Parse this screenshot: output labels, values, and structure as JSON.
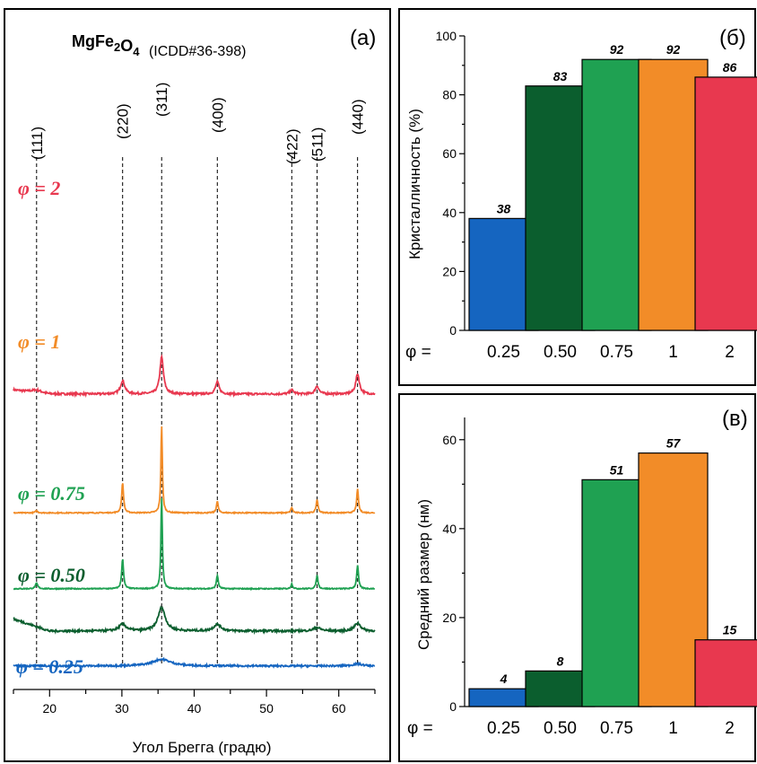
{
  "chart_data": [
    {
      "type": "line",
      "panel_label": "(а)",
      "title_formula": {
        "elements": [
          [
            "Mg",
            ""
          ],
          [
            "Fe",
            "2"
          ],
          [
            "O",
            "4"
          ]
        ]
      },
      "title_ref": "(ICDD#36-398)",
      "xlabel": "Угол Брегга (градю)",
      "xlim": [
        15,
        65
      ],
      "xticks": [
        20,
        30,
        40,
        50,
        60
      ],
      "peaks": [
        {
          "label": "(111)",
          "x": 18.2
        },
        {
          "label": "(220)",
          "x": 30.1
        },
        {
          "label": "(311)",
          "x": 35.5
        },
        {
          "label": "(400)",
          "x": 43.2
        },
        {
          "label": "(422)",
          "x": 53.5
        },
        {
          "label": "(511)",
          "x": 57.0
        },
        {
          "label": "(440)",
          "x": 62.6
        }
      ],
      "series": [
        {
          "name": "φ = 2",
          "color": "#e8384f",
          "baseline": 0.44,
          "rise": 0.006,
          "noise": 0.003,
          "peaks": [
            [
              18.2,
              0.004,
              0.8
            ],
            [
              30.1,
              0.02,
              0.35
            ],
            [
              35.5,
              0.055,
              0.3
            ],
            [
              43.2,
              0.018,
              0.3
            ],
            [
              53.5,
              0.006,
              0.3
            ],
            [
              57.0,
              0.012,
              0.3
            ],
            [
              62.6,
              0.03,
              0.3
            ]
          ]
        },
        {
          "name": "φ = 1",
          "color": "#f28c28",
          "baseline": 0.263,
          "rise": 0.0,
          "noise": 0.0015,
          "peaks": [
            [
              18.2,
              0.003,
              0.2
            ],
            [
              30.1,
              0.045,
              0.15
            ],
            [
              35.5,
              0.13,
              0.12
            ],
            [
              43.2,
              0.017,
              0.15
            ],
            [
              53.5,
              0.008,
              0.15
            ],
            [
              57.0,
              0.02,
              0.15
            ],
            [
              62.6,
              0.035,
              0.15
            ]
          ]
        },
        {
          "name": "φ = 0.75",
          "color": "#1fa152",
          "baseline": 0.15,
          "rise": 0.0,
          "noise": 0.0015,
          "peaks": [
            [
              18.2,
              0.008,
              0.2
            ],
            [
              30.1,
              0.045,
              0.15
            ],
            [
              35.5,
              0.135,
              0.12
            ],
            [
              43.2,
              0.02,
              0.15
            ],
            [
              53.5,
              0.007,
              0.15
            ],
            [
              57.0,
              0.02,
              0.15
            ],
            [
              62.6,
              0.035,
              0.15
            ]
          ]
        },
        {
          "name": "φ = 0.50",
          "color": "#0b5e2e",
          "baseline": 0.087,
          "rise": 0.018,
          "noise": 0.003,
          "peaks": [
            [
              30.1,
              0.01,
              0.6
            ],
            [
              35.5,
              0.035,
              0.6
            ],
            [
              43.2,
              0.01,
              0.6
            ],
            [
              57.0,
              0.005,
              0.6
            ],
            [
              62.6,
              0.012,
              0.5
            ]
          ]
        },
        {
          "name": "φ = 0.25",
          "color": "#1565c0",
          "baseline": 0.035,
          "rise": 0.0,
          "noise": 0.0025,
          "peaks": [
            [
              35.5,
              0.01,
              1.5
            ],
            [
              62.6,
              0.003,
              0.8
            ]
          ]
        }
      ]
    },
    {
      "type": "bar",
      "panel_label": "(б)",
      "ylabel": "Кристалличность (%)",
      "xlabel_prefix": "φ =",
      "categories": [
        "0.25",
        "0.50",
        "0.75",
        "1",
        "2"
      ],
      "values": [
        38,
        83,
        92,
        92,
        86
      ],
      "value_labels": [
        "38",
        "83",
        "92",
        "92",
        "86"
      ],
      "colors": [
        "#1565c0",
        "#0b5e2e",
        "#1fa152",
        "#f28c28",
        "#e8384f"
      ],
      "ylim": [
        0,
        100
      ],
      "yticks": [
        0,
        20,
        40,
        60,
        80,
        100
      ]
    },
    {
      "type": "bar",
      "panel_label": "(в)",
      "ylabel": "Средний размер (нм)",
      "xlabel_prefix": "φ =",
      "categories": [
        "0.25",
        "0.50",
        "0.75",
        "1",
        "2"
      ],
      "values": [
        4,
        8,
        51,
        57,
        15
      ],
      "value_labels": [
        "4",
        "8",
        "51",
        "57",
        "15"
      ],
      "colors": [
        "#1565c0",
        "#0b5e2e",
        "#1fa152",
        "#f28c28",
        "#e8384f"
      ],
      "ylim": [
        0,
        65
      ],
      "yticks": [
        0,
        20,
        40,
        60
      ]
    }
  ]
}
